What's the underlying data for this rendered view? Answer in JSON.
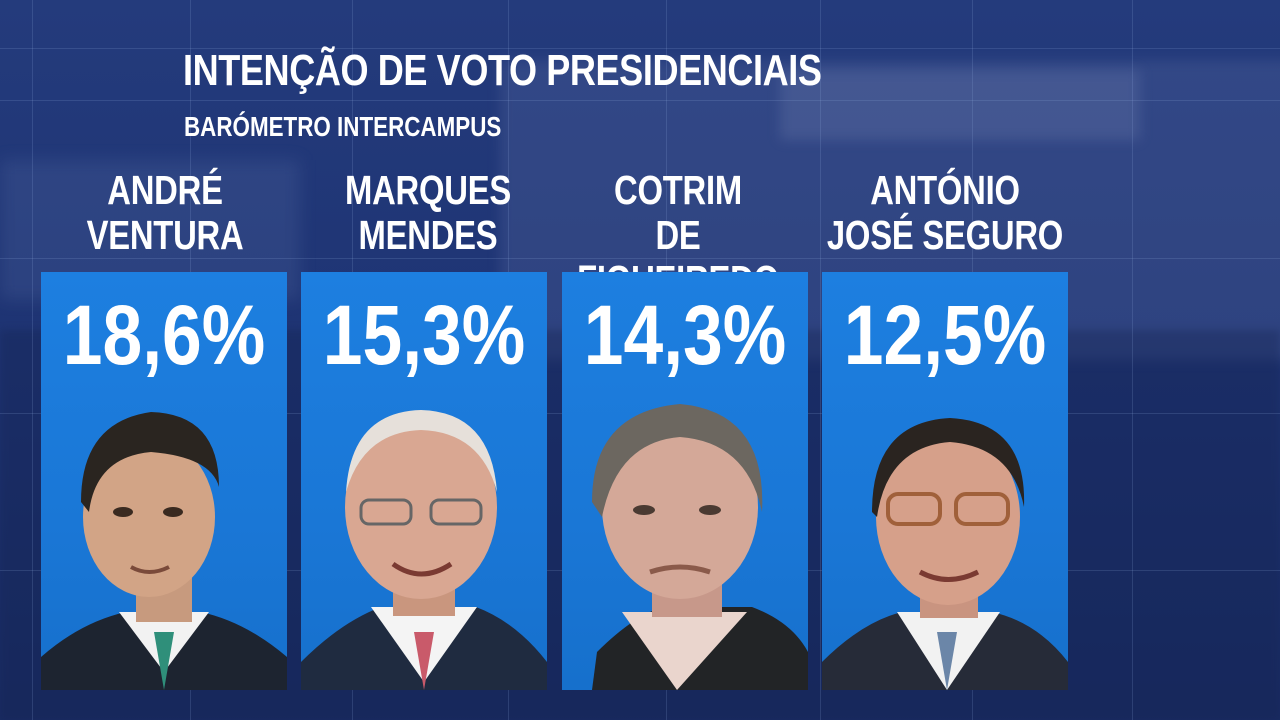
{
  "header": {
    "title": "INTENÇÃO DE VOTO PRESIDENCIAIS",
    "subtitle": "BARÓMETRO INTERCAMPUS"
  },
  "colors": {
    "background": "#1f3575",
    "card": "#1d7fe0",
    "text": "#ffffff"
  },
  "chart_data": {
    "type": "table",
    "title": "INTENÇÃO DE VOTO PRESIDENCIAIS",
    "subtitle": "BARÓMETRO INTERCAMPUS",
    "categories": [
      "ANDRÉ VENTURA",
      "MARQUES MENDES",
      "COTRIM DE FIGUEIREDO",
      "ANTÓNIO JOSÉ SEGURO"
    ],
    "values": [
      18.6,
      15.3,
      14.3,
      12.5
    ],
    "unit": "%"
  },
  "candidates": [
    {
      "name": "ANDRÉ\nVENTURA",
      "value_label": "18,6%",
      "value": 18.6,
      "photo_icon": "candidate-portrait"
    },
    {
      "name": "MARQUES\nMENDES",
      "value_label": "15,3%",
      "value": 15.3,
      "photo_icon": "candidate-portrait"
    },
    {
      "name": "COTRIM\nDE FIGUEIREDO",
      "value_label": "14,3%",
      "value": 14.3,
      "photo_icon": "candidate-portrait"
    },
    {
      "name": "ANTÓNIO\nJOSÉ SEGURO",
      "value_label": "12,5%",
      "value": 12.5,
      "photo_icon": "candidate-portrait"
    }
  ]
}
